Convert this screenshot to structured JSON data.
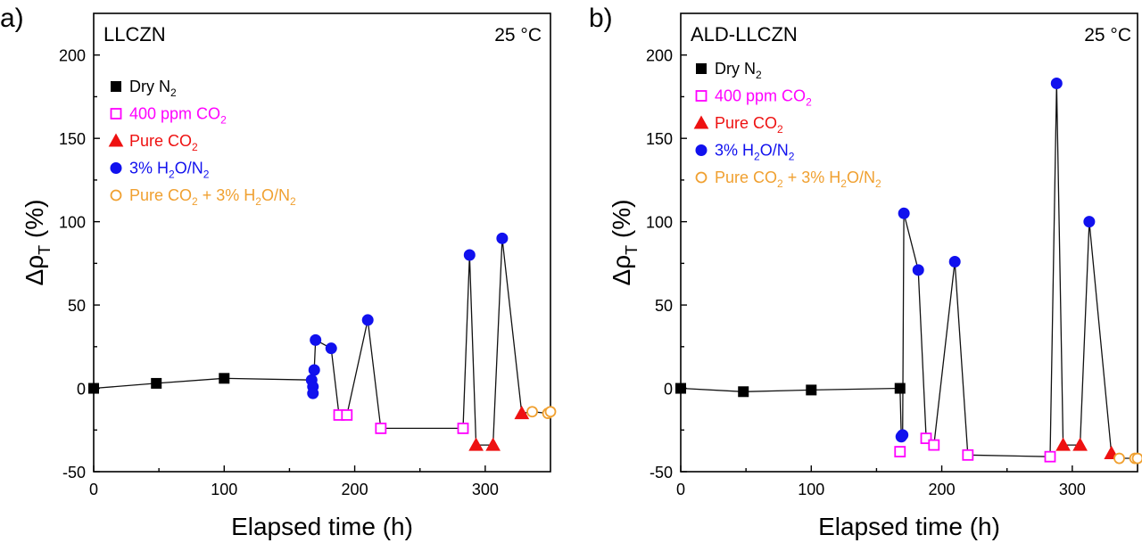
{
  "colors": {
    "dry_n2": "#000000",
    "co2_400": "#ff00ff",
    "pure_co2": "#ee1111",
    "h2o": "#1111ee",
    "pure_co2_h2o": "#f0a030",
    "panel_a_label": "#1a1acc",
    "panel_b_label": "#e01010"
  },
  "legend": {
    "dry_n2": {
      "main": "Dry N",
      "sub": "2",
      "tail": ""
    },
    "co2_400": {
      "main": "400 ppm CO",
      "sub": "2",
      "tail": ""
    },
    "pure_co2": {
      "main": "Pure CO",
      "sub": "2",
      "tail": ""
    },
    "h2o": {
      "main": "3% H",
      "sub": "2",
      "mid": "O/N",
      "sub2": "2"
    },
    "pure_co2_h2o": {
      "main": "Pure CO",
      "sub": "2",
      "mid": " + 3% H",
      "sub2": "2",
      "mid2": "O/N",
      "sub3": "2"
    }
  },
  "chart_data": [
    {
      "type": "scatter",
      "panel_label": "a)",
      "sample_label": "LLCZN",
      "temperature_label": "25 °C",
      "xlabel": "Elapsed time (h)",
      "ylabel_main": "Δ",
      "ylabel_greek": "ρ",
      "ylabel_sub": "T",
      "ylabel_unit": " (%)",
      "xlim": [
        0,
        350
      ],
      "ylim": [
        -50,
        225
      ],
      "xticks": [
        0,
        100,
        200,
        300
      ],
      "yticks": [
        -50,
        0,
        50,
        100,
        150,
        200
      ],
      "line": [
        [
          0,
          0
        ],
        [
          48,
          3
        ],
        [
          100,
          6
        ],
        [
          167,
          5
        ],
        [
          168,
          1
        ],
        [
          168,
          -3
        ],
        [
          169,
          11
        ],
        [
          170,
          29
        ],
        [
          182,
          24
        ],
        [
          188,
          -16
        ],
        [
          194,
          -16
        ],
        [
          210,
          41
        ],
        [
          220,
          -24
        ],
        [
          283,
          -24
        ],
        [
          288,
          80
        ],
        [
          293,
          -34
        ],
        [
          306,
          -34
        ],
        [
          313,
          90
        ],
        [
          328,
          -15
        ],
        [
          336,
          -14
        ],
        [
          348,
          -15
        ],
        [
          350,
          -14
        ]
      ],
      "series": [
        {
          "name": "Dry N2",
          "key": "dry_n2",
          "marker": "square-filled",
          "points": [
            [
              0,
              0
            ],
            [
              48,
              3
            ],
            [
              100,
              6
            ]
          ]
        },
        {
          "name": "400 ppm CO2",
          "key": "co2_400",
          "marker": "square-open",
          "points": [
            [
              188,
              -16
            ],
            [
              194,
              -16
            ],
            [
              220,
              -24
            ],
            [
              283,
              -24
            ]
          ]
        },
        {
          "name": "Pure CO2",
          "key": "pure_co2",
          "marker": "triangle-filled",
          "points": [
            [
              293,
              -34
            ],
            [
              306,
              -34
            ],
            [
              328,
              -15
            ]
          ]
        },
        {
          "name": "3% H2O/N2",
          "key": "h2o",
          "marker": "circle-filled",
          "points": [
            [
              167,
              5
            ],
            [
              168,
              1
            ],
            [
              168,
              -3
            ],
            [
              169,
              11
            ],
            [
              170,
              29
            ],
            [
              182,
              24
            ],
            [
              210,
              41
            ],
            [
              288,
              80
            ],
            [
              313,
              90
            ]
          ]
        },
        {
          "name": "Pure CO2 + 3% H2O/N2",
          "key": "pure_co2_h2o",
          "marker": "circle-open",
          "points": [
            [
              336,
              -14
            ],
            [
              348,
              -15
            ],
            [
              350,
              -14
            ]
          ]
        }
      ]
    },
    {
      "type": "scatter",
      "panel_label": "b)",
      "sample_label": "ALD-LLCZN",
      "temperature_label": "25 °C",
      "xlabel": "Elapsed time (h)",
      "ylabel_main": "Δ",
      "ylabel_greek": "ρ",
      "ylabel_sub": "T",
      "ylabel_unit": " (%)",
      "xlim": [
        0,
        350
      ],
      "ylim": [
        -50,
        225
      ],
      "xticks": [
        0,
        100,
        200,
        300
      ],
      "yticks": [
        -50,
        0,
        50,
        100,
        150,
        200
      ],
      "line": [
        [
          0,
          0
        ],
        [
          48,
          -2
        ],
        [
          100,
          -1
        ],
        [
          168,
          0
        ],
        [
          169,
          -29
        ],
        [
          170,
          -28
        ],
        [
          171,
          105
        ],
        [
          182,
          71
        ],
        [
          188,
          -29
        ],
        [
          194,
          -34
        ],
        [
          210,
          76
        ],
        [
          220,
          -40
        ],
        [
          283,
          -41
        ],
        [
          288,
          183
        ],
        [
          293,
          -34
        ],
        [
          306,
          -34
        ],
        [
          313,
          100
        ],
        [
          330,
          -39
        ],
        [
          336,
          -42
        ],
        [
          348,
          -42
        ],
        [
          350,
          -42
        ]
      ],
      "series": [
        {
          "name": "Dry N2",
          "key": "dry_n2",
          "marker": "square-filled",
          "points": [
            [
              0,
              0
            ],
            [
              48,
              -2
            ],
            [
              100,
              -1
            ],
            [
              168,
              0
            ]
          ]
        },
        {
          "name": "400 ppm CO2",
          "key": "co2_400",
          "marker": "square-open",
          "points": [
            [
              168,
              -38
            ],
            [
              188,
              -30
            ],
            [
              194,
              -34
            ],
            [
              220,
              -40
            ],
            [
              283,
              -41
            ]
          ]
        },
        {
          "name": "Pure CO2",
          "key": "pure_co2",
          "marker": "triangle-filled",
          "points": [
            [
              293,
              -34
            ],
            [
              306,
              -34
            ],
            [
              330,
              -39
            ]
          ]
        },
        {
          "name": "3% H2O/N2",
          "key": "h2o",
          "marker": "circle-filled",
          "points": [
            [
              169,
              -29
            ],
            [
              170,
              -28
            ],
            [
              171,
              105
            ],
            [
              182,
              71
            ],
            [
              210,
              76
            ],
            [
              288,
              183
            ],
            [
              313,
              100
            ]
          ]
        },
        {
          "name": "Pure CO2 + 3% H2O/N2",
          "key": "pure_co2_h2o",
          "marker": "circle-open",
          "points": [
            [
              336,
              -42
            ],
            [
              348,
              -42
            ],
            [
              350,
              -42
            ]
          ]
        }
      ]
    }
  ]
}
